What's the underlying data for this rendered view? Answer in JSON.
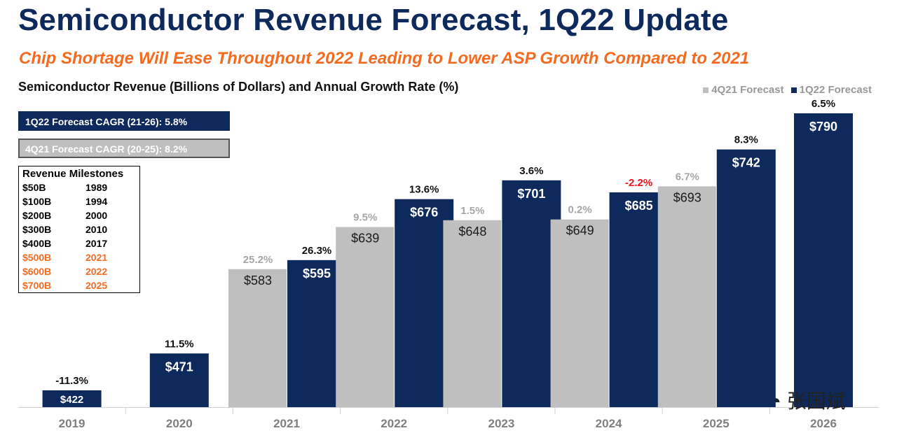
{
  "title": "Semiconductor Revenue Forecast, 1Q22 Update",
  "subtitle": "Chip Shortage Will Ease Throughout 2022 Leading to Lower ASP Growth Compared to 2021",
  "chart_label": "Semiconductor Revenue (Billions of Dollars) and Annual Growth Rate (%)",
  "legend": {
    "old": "4Q21 Forecast",
    "new": "1Q22 Forecast"
  },
  "colors": {
    "new": "#0e2a5c",
    "old": "#bfbfbf",
    "accent": "#f26b21",
    "negative": "#e8141b"
  },
  "cagr": {
    "new": "1Q22 Forecast CAGR (21-26): 5.8%",
    "old": "4Q21 Forecast CAGR (20-25): 8.2%"
  },
  "milestones": {
    "title": "Revenue Milestones",
    "rows": [
      {
        "amount": "$50B",
        "year": "1989",
        "highlight": false
      },
      {
        "amount": "$100B",
        "year": "1994",
        "highlight": false
      },
      {
        "amount": "$200B",
        "year": "2000",
        "highlight": false
      },
      {
        "amount": "$300B",
        "year": "2010",
        "highlight": false
      },
      {
        "amount": "$400B",
        "year": "2017",
        "highlight": false
      },
      {
        "amount": "$500B",
        "year": "2021",
        "highlight": true
      },
      {
        "amount": "$600B",
        "year": "2022",
        "highlight": true
      },
      {
        "amount": "$700B",
        "year": "2025",
        "highlight": true
      }
    ]
  },
  "chart_data": {
    "type": "bar",
    "categories": [
      "2019",
      "2020",
      "2021",
      "2022",
      "2023",
      "2024",
      "2025",
      "2026"
    ],
    "series": [
      {
        "name": "4Q21 Forecast",
        "values": [
          null,
          null,
          583,
          639,
          648,
          649,
          693,
          null
        ],
        "labels": [
          null,
          null,
          "$583",
          "$639",
          "$648",
          "$649",
          "$693",
          null
        ],
        "growth": [
          null,
          null,
          "25.2%",
          "9.5%",
          "1.5%",
          "0.2%",
          "6.7%",
          null
        ]
      },
      {
        "name": "1Q22 Forecast",
        "values": [
          422,
          471,
          595,
          676,
          701,
          685,
          742,
          790
        ],
        "labels": [
          "$422",
          "$471",
          "$595",
          "$676",
          "$701",
          "$685",
          "$742",
          "$790"
        ],
        "growth": [
          "-11.3%",
          "11.5%",
          "26.3%",
          "13.6%",
          "3.6%",
          "-2.2%",
          "8.3%",
          "6.5%"
        ]
      }
    ],
    "xlabel": "",
    "ylabel": "",
    "grid": false,
    "legend_position": "top-right"
  },
  "watermark": "张国斌"
}
